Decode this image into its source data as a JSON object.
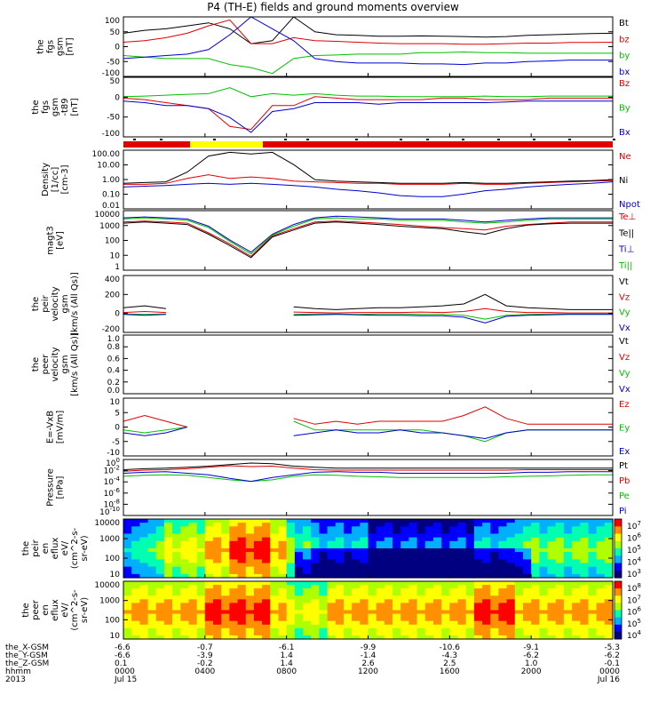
{
  "title": "P4 (TH-E) fields and ground moments overview",
  "chart_data": [
    {
      "type": "line",
      "panel": "fgs_gsm",
      "ylabel": [
        "the",
        "fgs",
        "gsm",
        "[nT]"
      ],
      "yticks": [
        "100",
        "50",
        "0",
        "-50",
        "-100"
      ],
      "ylim": [
        -100,
        100
      ],
      "series": [
        {
          "name": "Bt",
          "color": "#000000",
          "values": [
            45,
            55,
            60,
            70,
            80,
            60,
            10,
            20,
            100,
            50,
            40,
            38,
            35,
            35,
            36,
            35,
            34,
            32,
            34,
            38,
            40,
            42,
            44,
            45
          ]
        },
        {
          "name": "bz",
          "color": "#e00000",
          "values": [
            15,
            20,
            30,
            45,
            70,
            90,
            10,
            10,
            30,
            20,
            18,
            15,
            12,
            10,
            10,
            10,
            8,
            8,
            10,
            12,
            12,
            14,
            14,
            15
          ]
        },
        {
          "name": "by",
          "color": "#00c000",
          "values": [
            -30,
            -35,
            -40,
            -40,
            -40,
            -60,
            -70,
            -90,
            -40,
            -30,
            -28,
            -25,
            -25,
            -25,
            -20,
            -20,
            -18,
            -20,
            -20,
            -22,
            -22,
            -22,
            -22,
            -22
          ]
        },
        {
          "name": "bx",
          "color": "#0000d0",
          "values": [
            -40,
            -35,
            -30,
            -25,
            -10,
            40,
            100,
            60,
            20,
            -40,
            -50,
            -55,
            -55,
            -55,
            -58,
            -58,
            -60,
            -55,
            -55,
            -50,
            -48,
            -45,
            -45,
            -45
          ]
        }
      ]
    },
    {
      "type": "line",
      "panel": "fgs_gsm_dsl",
      "ylabel": [
        "the",
        "fgs",
        "gsm",
        "-t89",
        "[nT]"
      ],
      "yticks": [
        "50",
        "0",
        "-50",
        "-100"
      ],
      "ylim": [
        -125,
        75
      ],
      "series": [
        {
          "name": "Bz",
          "color": "#e00000",
          "values": [
            5,
            0,
            -10,
            -20,
            -30,
            -90,
            -100,
            -20,
            -20,
            10,
            5,
            0,
            0,
            0,
            0,
            5,
            5,
            0,
            0,
            0,
            5,
            5,
            5,
            5
          ]
        },
        {
          "name": "By",
          "color": "#00c000",
          "values": [
            10,
            12,
            15,
            18,
            20,
            40,
            10,
            20,
            15,
            20,
            15,
            12,
            12,
            10,
            10,
            10,
            10,
            12,
            10,
            10,
            12,
            12,
            12,
            12
          ]
        },
        {
          "name": "Bx",
          "color": "#0000d0",
          "values": [
            -5,
            -10,
            -20,
            -20,
            -30,
            -60,
            -110,
            -40,
            -30,
            -10,
            -10,
            -10,
            -15,
            -10,
            -10,
            -10,
            -10,
            -10,
            -8,
            -5,
            -5,
            -5,
            -5,
            -5
          ]
        }
      ]
    },
    {
      "type": "line",
      "panel": "density",
      "ylabel": [
        "Density",
        "[1/cc]",
        "[cm-3]"
      ],
      "yticks": [
        "100.00",
        "10.00",
        "1.00",
        "0.10",
        "0.01"
      ],
      "ylim": [
        0.005,
        300
      ],
      "scale": "log",
      "series": [
        {
          "name": "Ne",
          "color": "#e00000",
          "values": [
            0.5,
            0.5,
            0.6,
            1.5,
            3,
            1.5,
            2,
            1.5,
            0.9,
            0.8,
            0.7,
            0.6,
            0.6,
            0.5,
            0.5,
            0.5,
            0.6,
            0.5,
            0.5,
            0.6,
            0.7,
            0.8,
            0.9,
            1.0
          ]
        },
        {
          "name": "Ni",
          "color": "#000000",
          "values": [
            0.6,
            0.7,
            0.8,
            5,
            100,
            200,
            150,
            200,
            20,
            1.2,
            0.9,
            0.8,
            0.7,
            0.6,
            0.6,
            0.6,
            0.7,
            0.6,
            0.6,
            0.7,
            0.8,
            0.9,
            1.0,
            1.2
          ]
        },
        {
          "name": "Npot",
          "color": "#0000d0",
          "values": [
            0.3,
            0.35,
            0.4,
            0.5,
            0.6,
            0.5,
            0.6,
            0.5,
            0.4,
            0.3,
            0.2,
            0.15,
            0.1,
            0.06,
            0.05,
            0.05,
            0.08,
            0.15,
            0.2,
            0.3,
            0.4,
            0.5,
            0.6,
            0.8
          ]
        }
      ]
    },
    {
      "type": "line",
      "panel": "temperature",
      "ylabel": [
        "magt3",
        "[eV]"
      ],
      "yticks": [
        "10000",
        "1000",
        "100",
        "10",
        "1"
      ],
      "ylim": [
        1,
        20000
      ],
      "scale": "log",
      "series": [
        {
          "name": "Te⊥",
          "color": "#e00000",
          "values": [
            3000,
            3500,
            3000,
            2500,
            500,
            80,
            10,
            300,
            1000,
            3000,
            3500,
            3000,
            2500,
            2000,
            1500,
            1200,
            1000,
            800,
            1500,
            2000,
            2500,
            3000,
            3000,
            3000
          ]
        },
        {
          "name": "Te||",
          "color": "#000000",
          "values": [
            2500,
            3000,
            2500,
            2000,
            400,
            60,
            8,
            250,
            800,
            2500,
            3000,
            2500,
            2000,
            1500,
            1200,
            1000,
            600,
            400,
            1000,
            1800,
            2200,
            2500,
            2500,
            2500
          ]
        },
        {
          "name": "Ti⊥",
          "color": "#0000d0",
          "values": [
            6000,
            7000,
            6000,
            5000,
            1500,
            150,
            20,
            400,
            2000,
            6000,
            8000,
            7000,
            6000,
            5000,
            5000,
            5000,
            4000,
            3000,
            4000,
            5000,
            6000,
            6000,
            6000,
            6000
          ]
        },
        {
          "name": "Ti||",
          "color": "#00c000",
          "values": [
            5000,
            6000,
            5000,
            4000,
            1200,
            120,
            15,
            350,
            1500,
            5000,
            6000,
            5000,
            5000,
            4000,
            4000,
            4000,
            3000,
            2500,
            3000,
            4000,
            5000,
            5000,
            5000,
            5000
          ]
        }
      ]
    },
    {
      "type": "line",
      "panel": "peir_velocity",
      "ylabel": [
        "the",
        "peir",
        "velocity",
        "gsm",
        "[km/s (All Qs)]"
      ],
      "yticks": [
        "400",
        "200",
        "0",
        "-200"
      ],
      "ylim": [
        -200,
        400
      ],
      "series": [
        {
          "name": "Vt",
          "color": "#000000",
          "values": [
            60,
            80,
            50,
            null,
            null,
            null,
            null,
            null,
            70,
            50,
            40,
            50,
            60,
            60,
            70,
            80,
            100,
            200,
            80,
            60,
            50,
            40,
            40,
            40
          ]
        },
        {
          "name": "Vz",
          "color": "#e00000",
          "values": [
            10,
            20,
            10,
            null,
            null,
            null,
            null,
            null,
            15,
            10,
            5,
            10,
            10,
            10,
            15,
            10,
            20,
            50,
            20,
            10,
            10,
            5,
            5,
            5
          ]
        },
        {
          "name": "Vy",
          "color": "#00c000",
          "values": [
            -5,
            -10,
            -5,
            null,
            null,
            null,
            null,
            null,
            -10,
            -5,
            -5,
            -10,
            -5,
            -5,
            -10,
            -10,
            -20,
            -60,
            -20,
            -10,
            -5,
            -5,
            -5,
            -5
          ]
        },
        {
          "name": "Vx",
          "color": "#0000d0",
          "values": [
            -10,
            -20,
            -10,
            null,
            null,
            null,
            null,
            null,
            -20,
            -15,
            -10,
            -15,
            -20,
            -20,
            -25,
            -25,
            -40,
            -100,
            -30,
            -20,
            -15,
            -10,
            -10,
            -10
          ]
        }
      ]
    },
    {
      "type": "line",
      "panel": "peer_velocity",
      "ylabel": [
        "the",
        "peer",
        "velocity",
        "gsm",
        "[km/s (All Qs)]"
      ],
      "yticks": [
        "1.0",
        "0.8",
        "0.6",
        "0.4",
        "0.2",
        "0.0"
      ],
      "ylim": [
        0,
        1
      ],
      "series": [
        {
          "name": "Vt",
          "color": "#000000",
          "values": []
        },
        {
          "name": "Vz",
          "color": "#e00000",
          "values": []
        },
        {
          "name": "Vy",
          "color": "#00c000",
          "values": []
        },
        {
          "name": "Vx",
          "color": "#0000d0",
          "values": []
        }
      ]
    },
    {
      "type": "line",
      "panel": "efield",
      "ylabel": [
        "E=-VxB",
        "[mV/m]"
      ],
      "yticks": [
        "10",
        "5",
        "0",
        "-5",
        "-10"
      ],
      "ylim": [
        -10,
        10
      ],
      "series": [
        {
          "name": "Ez",
          "color": "#e00000",
          "values": [
            2,
            4,
            2,
            0,
            null,
            null,
            null,
            null,
            3,
            1,
            2,
            1,
            2,
            2,
            2,
            2,
            4,
            7,
            3,
            1,
            1,
            1,
            1,
            1
          ]
        },
        {
          "name": "Ey",
          "color": "#00c000",
          "values": [
            -1,
            -2,
            -1,
            0,
            null,
            null,
            null,
            null,
            2,
            -1,
            -1,
            -1,
            -1,
            -1,
            -1,
            -2,
            -3,
            -5,
            -2,
            -1,
            -1,
            -1,
            -1,
            -1
          ]
        },
        {
          "name": "Ex",
          "color": "#0000d0",
          "values": [
            -2,
            -3,
            -2,
            0,
            null,
            null,
            null,
            null,
            -3,
            -2,
            -1,
            -2,
            -2,
            -1,
            -2,
            -2,
            -3,
            -4,
            -2,
            -1,
            -1,
            -1,
            -1,
            -1
          ]
        }
      ]
    },
    {
      "type": "line",
      "panel": "pressure",
      "ylabel": [
        "Pressure",
        "[nPa]"
      ],
      "yticks": [
        "10^0",
        "10^-2",
        "10^-4",
        "10^-6",
        "10^-8",
        "10^-10"
      ],
      "ylim": [
        1e-10,
        10
      ],
      "scale": "log",
      "series": [
        {
          "name": "Pt",
          "color": "#000000",
          "values": [
            0.1,
            0.15,
            0.2,
            0.3,
            0.5,
            1,
            2,
            1.5,
            0.5,
            0.3,
            0.2,
            0.2,
            0.2,
            0.2,
            0.2,
            0.2,
            0.2,
            0.2,
            0.2,
            0.2,
            0.2,
            0.2,
            0.2,
            0.2
          ]
        },
        {
          "name": "Pb",
          "color": "#e00000",
          "values": [
            0.05,
            0.08,
            0.1,
            0.15,
            0.3,
            0.6,
            0.4,
            0.5,
            0.2,
            0.1,
            0.08,
            0.08,
            0.08,
            0.08,
            0.08,
            0.08,
            0.08,
            0.08,
            0.08,
            0.1,
            0.1,
            0.1,
            0.1,
            0.1
          ]
        },
        {
          "name": "Pe",
          "color": "#00c000",
          "values": [
            0.005,
            0.008,
            0.01,
            0.008,
            0.003,
            0.001,
            0.0005,
            0.001,
            0.005,
            0.01,
            0.008,
            0.005,
            0.004,
            0.003,
            0.003,
            0.003,
            0.003,
            0.003,
            0.004,
            0.005,
            0.006,
            0.008,
            0.01,
            0.01
          ]
        },
        {
          "name": "Pi",
          "color": "#0000d0",
          "values": [
            0.02,
            0.03,
            0.04,
            0.02,
            0.01,
            0.002,
            0.0005,
            0.003,
            0.01,
            0.03,
            0.04,
            0.03,
            0.03,
            0.02,
            0.02,
            0.02,
            0.02,
            0.02,
            0.02,
            0.03,
            0.03,
            0.04,
            0.04,
            0.04
          ]
        }
      ]
    },
    {
      "type": "heatmap",
      "panel": "peir_en_eflux",
      "ylabel": [
        "the",
        "peir",
        "en",
        "eflux",
        "eV/",
        "(cm^2-s-",
        "sr-eV)"
      ],
      "yticks": [
        "10000",
        "1000",
        "100",
        "10"
      ],
      "ylim": [
        5,
        25000
      ],
      "scale": "log",
      "colorbar_ticks": [
        "10^7",
        "10^6",
        "10^5",
        "10^4",
        "10^3"
      ]
    },
    {
      "type": "heatmap",
      "panel": "peer_en_eflux",
      "ylabel": [
        "the",
        "peer",
        "en",
        "eflux",
        "eV/",
        "(cm^2-s-",
        "sr-eV)"
      ],
      "yticks": [
        "10000",
        "1000",
        "100",
        "10"
      ],
      "ylim": [
        5,
        25000
      ],
      "scale": "log",
      "colorbar_ticks": [
        "10^8",
        "10^7",
        "10^6",
        "10^5",
        "10^4"
      ]
    }
  ],
  "legend_layout": "right-side",
  "xaxis": {
    "row_labels": [
      "the_X-GSM",
      "the_Y-GSM",
      "the_Z-GSM",
      "hhmm",
      "2013"
    ],
    "columns": [
      {
        "vals": [
          "-6.6",
          "-6.6",
          "0.1",
          "0000",
          "Jul 15"
        ]
      },
      {
        "vals": [
          "-0.7",
          "-3.9",
          "-0.2",
          "0400",
          ""
        ]
      },
      {
        "vals": [
          "-6.1",
          "1.4",
          "1.4",
          "0800",
          ""
        ]
      },
      {
        "vals": [
          "-9.9",
          "-1.4",
          "2.6",
          "1200",
          ""
        ]
      },
      {
        "vals": [
          "-10.6",
          "-4.3",
          "2.5",
          "1600",
          ""
        ]
      },
      {
        "vals": [
          "-9.1",
          "-6.2",
          "1.0",
          "2000",
          ""
        ]
      },
      {
        "vals": [
          "-5.3",
          "-6.2",
          "-0.1",
          "0000",
          "Jul 16"
        ]
      }
    ]
  },
  "colors": {
    "axis": "#000000",
    "black": "#000000",
    "red": "#e00000",
    "green": "#00c000",
    "blue": "#0000d0",
    "yellow": "#ffff00",
    "orange": "#ff8000"
  }
}
